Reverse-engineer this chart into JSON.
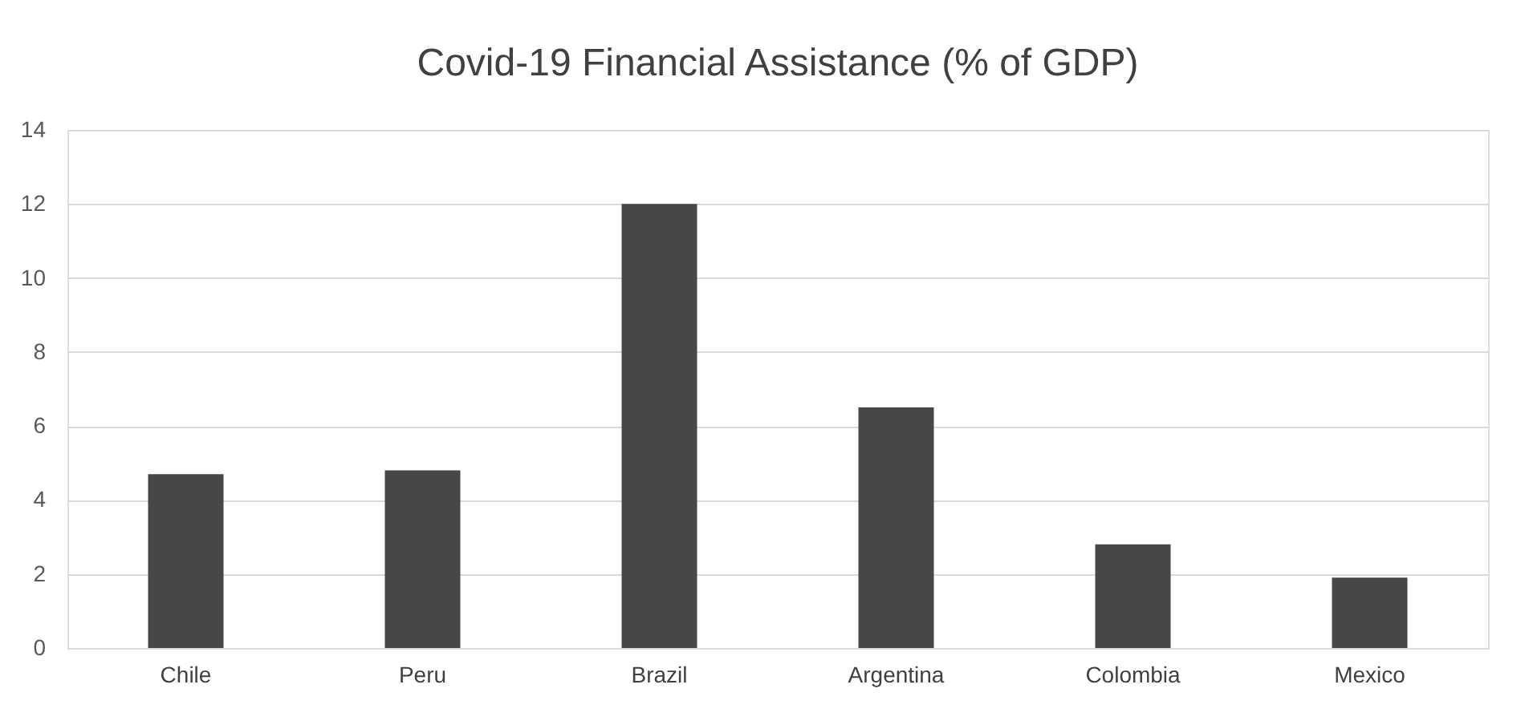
{
  "chart_data": {
    "type": "bar",
    "title": "Covid-19 Financial Assistance (% of GDP)",
    "categories": [
      "Chile",
      "Peru",
      "Brazil",
      "Argentina",
      "Colombia",
      "Mexico"
    ],
    "values": [
      4.7,
      4.8,
      12,
      6.5,
      2.8,
      1.9
    ],
    "color": "#474747",
    "ylim": [
      0,
      14
    ],
    "yticks": [
      0,
      2,
      4,
      6,
      8,
      10,
      12,
      14
    ],
    "grid": "y"
  }
}
